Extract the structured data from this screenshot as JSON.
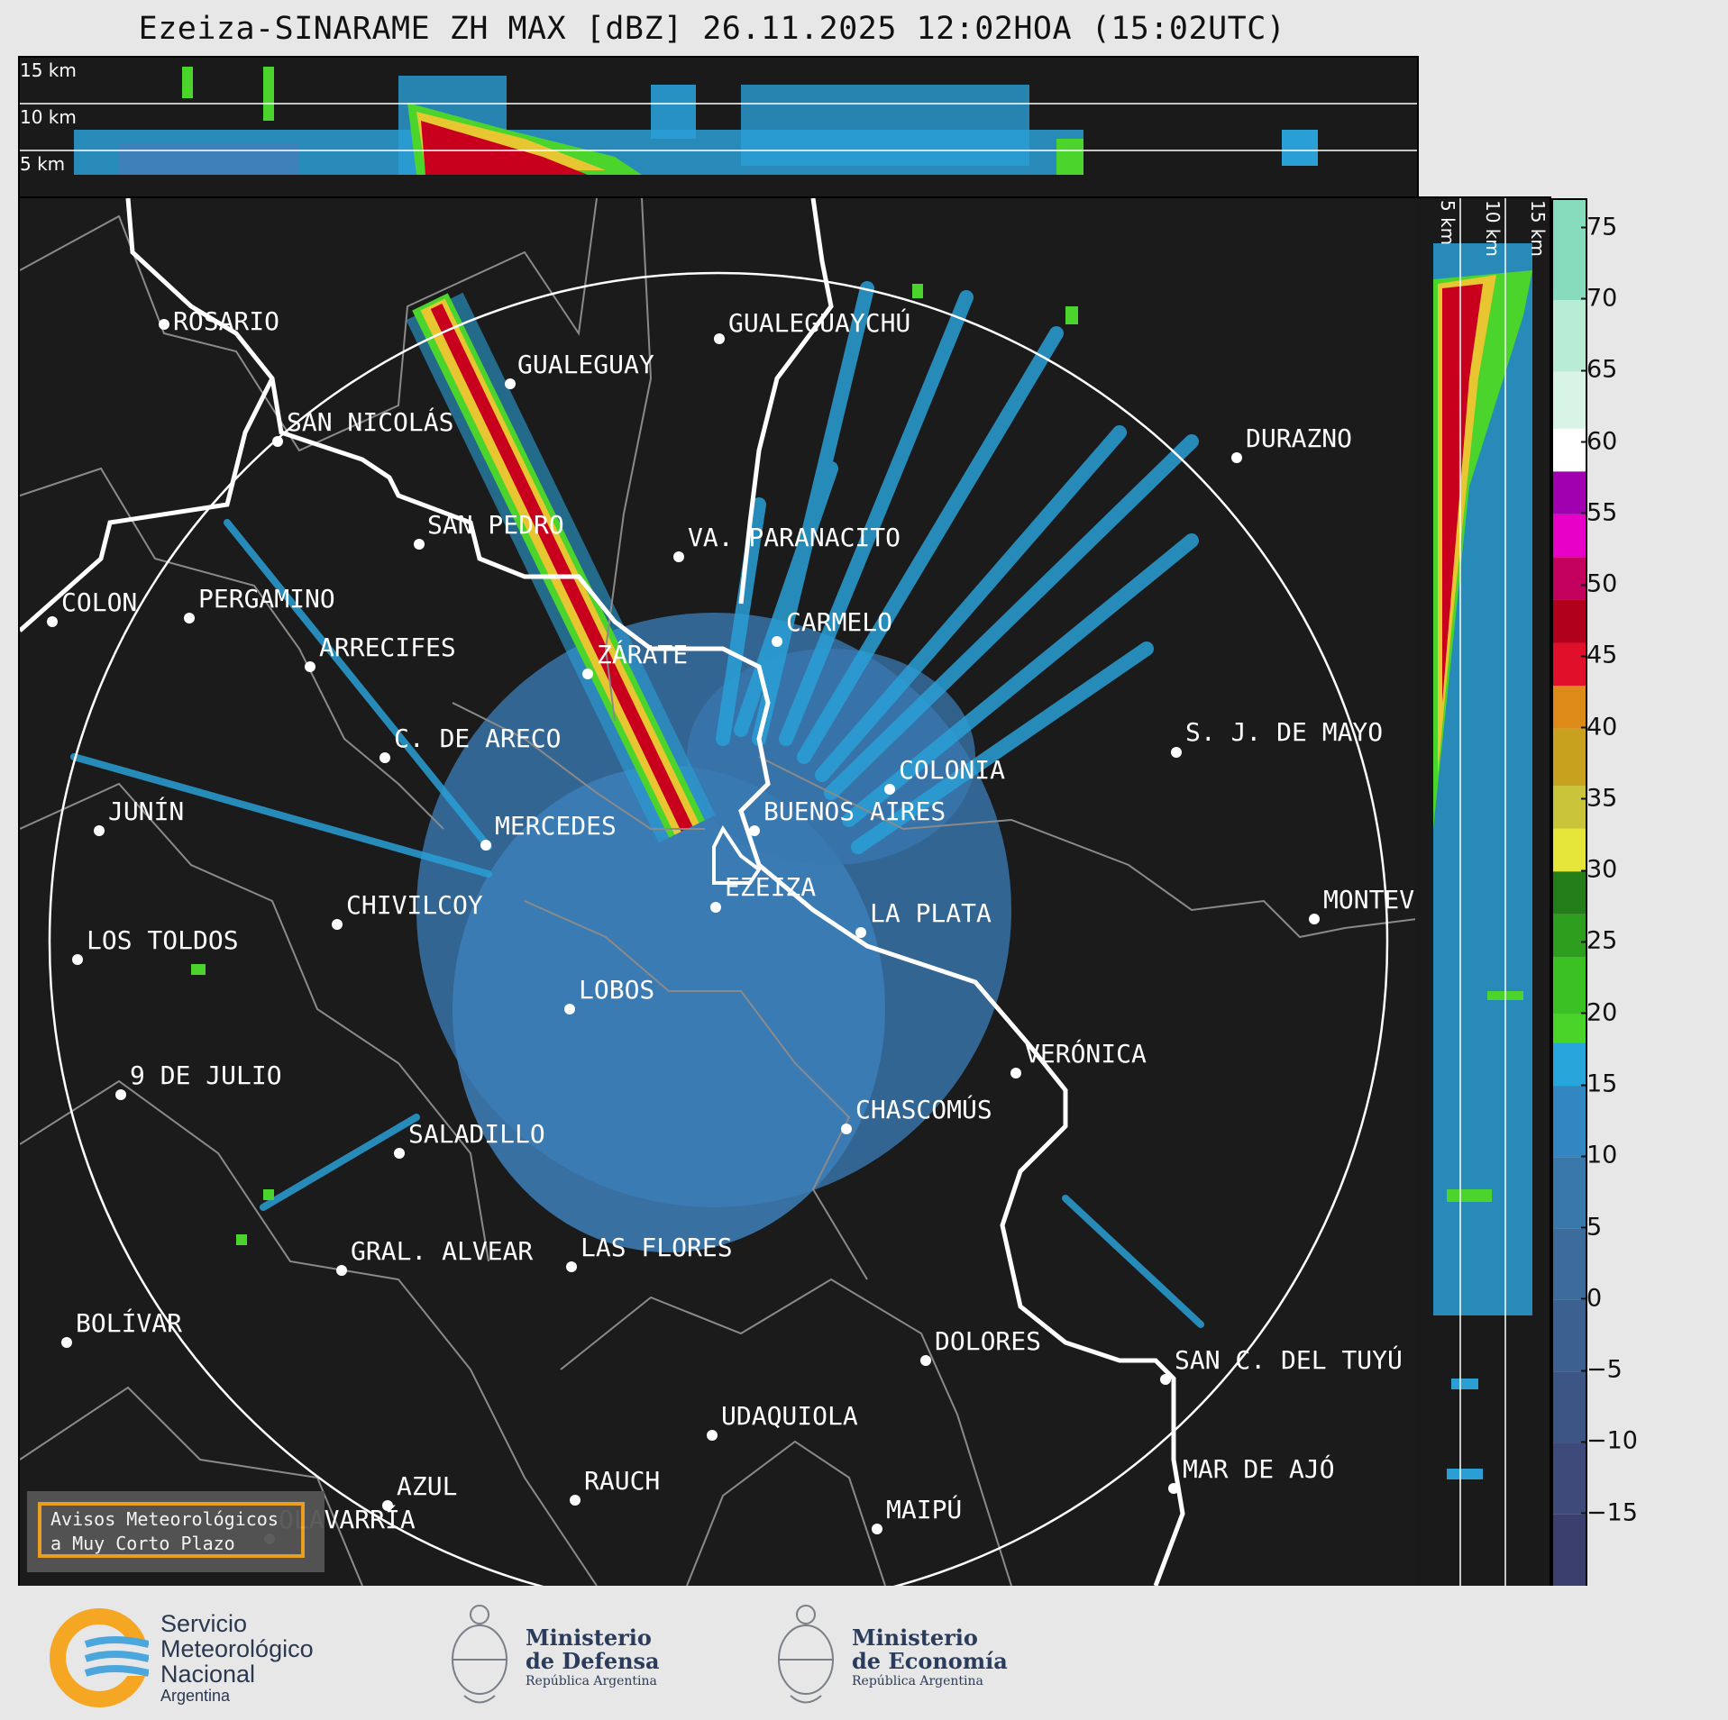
{
  "title": "Ezeiza-SINARAME ZH MAX [dBZ] 26.11.2025 12:02HOA (15:02UTC)",
  "top_panel": {
    "km_labels": [
      "15 km",
      "10 km",
      "5 km"
    ]
  },
  "side_panel": {
    "km_labels": [
      "5 km",
      "10 km",
      "15 km"
    ]
  },
  "colorbar": {
    "ticks": [
      "75",
      "70",
      "65",
      "60",
      "55",
      "50",
      "45",
      "40",
      "35",
      "30",
      "25",
      "20",
      "15",
      "10",
      "5",
      "0",
      "−5",
      "−10",
      "−15"
    ],
    "min": -20,
    "max": 77
  },
  "cities": [
    {
      "name": "ROSARIO"
    },
    {
      "name": "GUALEGUAYCHÚ"
    },
    {
      "name": "GUALEGUAY"
    },
    {
      "name": "SAN NICOLÁS"
    },
    {
      "name": "DURAZNO"
    },
    {
      "name": "SAN PEDRO"
    },
    {
      "name": "VA. PARANACITO"
    },
    {
      "name": "COLON"
    },
    {
      "name": "PERGAMINO"
    },
    {
      "name": "CARMELO"
    },
    {
      "name": "ARRECIFES"
    },
    {
      "name": "ZÁRATE"
    },
    {
      "name": "S. J. DE MAYO"
    },
    {
      "name": "C. DE ARECO"
    },
    {
      "name": "COLONIA"
    },
    {
      "name": "JUNÍN"
    },
    {
      "name": "BUENOS AIRES"
    },
    {
      "name": "MERCEDES"
    },
    {
      "name": "EZEIZA"
    },
    {
      "name": "MONTEV"
    },
    {
      "name": "CHIVILCOY"
    },
    {
      "name": "LA PLATA"
    },
    {
      "name": "LOS TOLDOS"
    },
    {
      "name": "LOBOS"
    },
    {
      "name": "VERÓNICA"
    },
    {
      "name": "9 DE JULIO"
    },
    {
      "name": "CHASCOMÚS"
    },
    {
      "name": "SALADILLO"
    },
    {
      "name": "GRAL. ALVEAR"
    },
    {
      "name": "LAS FLORES"
    },
    {
      "name": "BOLÍVAR"
    },
    {
      "name": "DOLORES"
    },
    {
      "name": "SAN C. DEL TUYÚ"
    },
    {
      "name": "UDAQUIOLA"
    },
    {
      "name": "MAR DE AJÓ"
    },
    {
      "name": "RAUCH"
    },
    {
      "name": "AZUL"
    },
    {
      "name": "OLAVARRÍA"
    },
    {
      "name": "MAIPÚ"
    }
  ],
  "aviso": {
    "line1": "Avisos Meteorológicos",
    "line2": "a Muy Corto Plazo"
  },
  "footer": {
    "smn": [
      "Servicio",
      "Meteorológico",
      "Nacional",
      "Argentina"
    ],
    "defensa": [
      "Ministerio",
      "de Defensa",
      "República Argentina"
    ],
    "economia": [
      "Ministerio",
      "de Economía",
      "República Argentina"
    ]
  },
  "colors": {
    "background": "#1b1b1b",
    "ring": "#ffffff",
    "coast": "#ffffff",
    "borders": "#8a8a8a",
    "echo_low": "#3d7fb8",
    "echo_mid": "#2a9fd6",
    "echo_green": "#4bd42b",
    "echo_red": "#c8001e",
    "accent": "#f5a623"
  }
}
